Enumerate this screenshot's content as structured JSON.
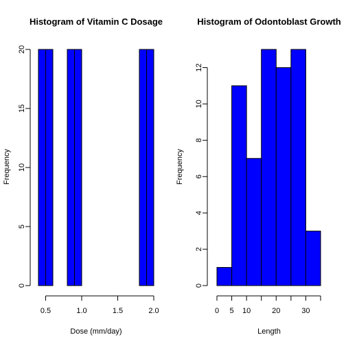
{
  "chart_data": [
    {
      "type": "bar",
      "title": "Histogram of Vitamin C Dosage",
      "xlabel": "Dose (mm/day)",
      "ylabel": "Frequency",
      "bin_edges": [
        0.4,
        0.5,
        0.6,
        0.7,
        0.8,
        0.9,
        1.0,
        1.1,
        1.2,
        1.3,
        1.4,
        1.5,
        1.6,
        1.7,
        1.8,
        1.9,
        2.0
      ],
      "values": [
        20,
        20,
        0,
        0,
        20,
        20,
        0,
        0,
        0,
        0,
        0,
        0,
        0,
        0,
        20,
        20
      ],
      "xlim": [
        0.4,
        2.0
      ],
      "ylim": [
        0,
        20
      ],
      "x_ticks": [
        0.5,
        1.0,
        1.5,
        2.0
      ],
      "x_tick_labels": [
        "0.5",
        "1.0",
        "1.5",
        "2.0"
      ],
      "y_ticks": [
        0,
        5,
        10,
        15,
        20
      ],
      "y_tick_labels": [
        "0",
        "5",
        "10",
        "15",
        "20"
      ],
      "bar_color": "#0000ff",
      "grid": false
    },
    {
      "type": "bar",
      "title": "Histogram of Odontoblast Growth",
      "xlabel": "Length",
      "ylabel": "Frequency",
      "bin_edges": [
        0,
        5,
        10,
        15,
        20,
        25,
        30,
        35
      ],
      "values": [
        1,
        11,
        7,
        13,
        12,
        13,
        3
      ],
      "xlim": [
        0,
        35
      ],
      "ylim": [
        0,
        13
      ],
      "x_ticks": [
        0,
        5,
        10,
        15,
        20,
        25,
        30,
        35
      ],
      "x_tick_labels": [
        "0",
        "5",
        "10",
        "",
        "20",
        "",
        "30",
        ""
      ],
      "y_ticks": [
        0,
        2,
        4,
        6,
        8,
        10,
        12
      ],
      "y_tick_labels": [
        "0",
        "2",
        "4",
        "6",
        "8",
        "10",
        "12"
      ],
      "bar_color": "#0000ff",
      "grid": false
    }
  ]
}
